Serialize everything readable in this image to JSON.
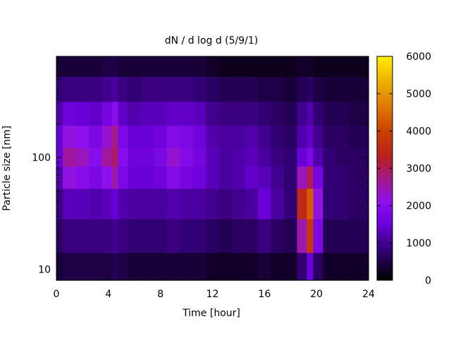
{
  "chart_data": {
    "type": "heatmap",
    "title": "dN / d log d (5/9/1)",
    "xlabel": "Time [hour]",
    "ylabel": "Particle size [nm]",
    "xlim": [
      0,
      24
    ],
    "ylim": [
      8,
      800
    ],
    "yscale": "log",
    "xticks": [
      0,
      4,
      8,
      12,
      16,
      20,
      24
    ],
    "xtick_labels": [
      "0",
      "4",
      "8",
      "12",
      "16",
      "20",
      "24"
    ],
    "yticks": [
      10,
      100
    ],
    "ytick_labels": [
      "10",
      "100"
    ],
    "colorbar": {
      "min": 0,
      "max": 6000,
      "ticks": [
        0,
        1000,
        2000,
        3000,
        4000,
        5000,
        6000
      ],
      "tick_labels": [
        "0",
        "1000",
        "2000",
        "3000",
        "4000",
        "5000",
        "6000"
      ],
      "colormap": "gnuplot pm3d (black-blue-purple-red-orange-yellow)"
    },
    "x": [
      0,
      1,
      2,
      3,
      4,
      4.5,
      5,
      6,
      7,
      8,
      9,
      10,
      11,
      12,
      13,
      14,
      15,
      16,
      17,
      18,
      19,
      19.5,
      20,
      21,
      22,
      23,
      24
    ],
    "y": [
      10,
      20,
      40,
      70,
      100,
      150,
      250,
      400,
      700
    ],
    "z_estimated": [
      [
        400,
        700,
        900,
        1200,
        1500,
        1500,
        1200,
        800,
        400
      ],
      [
        500,
        900,
        1300,
        2200,
        2600,
        2200,
        1600,
        900,
        400
      ],
      [
        500,
        900,
        1300,
        2000,
        2400,
        2100,
        1500,
        900,
        400
      ],
      [
        500,
        900,
        1200,
        1800,
        2000,
        1800,
        1400,
        900,
        400
      ],
      [
        500,
        900,
        1300,
        2100,
        2600,
        2300,
        1700,
        1000,
        500
      ],
      [
        600,
        1000,
        1500,
        2500,
        2900,
        2700,
        2000,
        1100,
        500
      ],
      [
        500,
        900,
        1200,
        1800,
        2000,
        1800,
        1400,
        900,
        400
      ],
      [
        400,
        800,
        1100,
        1500,
        1600,
        1500,
        1200,
        800,
        400
      ],
      [
        400,
        800,
        1100,
        1500,
        1600,
        1500,
        1300,
        900,
        400
      ],
      [
        400,
        800,
        1100,
        1600,
        1800,
        1600,
        1300,
        900,
        400
      ],
      [
        400,
        900,
        1200,
        1900,
        2300,
        1900,
        1400,
        900,
        400
      ],
      [
        400,
        800,
        1100,
        1700,
        1900,
        1800,
        1400,
        900,
        400
      ],
      [
        400,
        800,
        1100,
        1600,
        1700,
        1600,
        1300,
        800,
        400
      ],
      [
        300,
        700,
        1000,
        1300,
        1300,
        1200,
        1000,
        700,
        300
      ],
      [
        300,
        600,
        900,
        1100,
        1100,
        1100,
        900,
        600,
        200
      ],
      [
        300,
        700,
        1000,
        1200,
        1200,
        1100,
        900,
        600,
        200
      ],
      [
        300,
        700,
        1100,
        1400,
        1300,
        1200,
        900,
        600,
        200
      ],
      [
        400,
        900,
        1500,
        1300,
        1100,
        1000,
        800,
        500,
        200
      ],
      [
        300,
        700,
        1100,
        1000,
        900,
        800,
        700,
        500,
        200
      ],
      [
        300,
        600,
        800,
        800,
        800,
        700,
        600,
        400,
        200
      ],
      [
        800,
        2500,
        3500,
        2400,
        1500,
        1200,
        1000,
        600,
        300
      ],
      [
        1500,
        3800,
        4300,
        3000,
        1800,
        1400,
        1200,
        700,
        300
      ],
      [
        700,
        1800,
        2200,
        1700,
        1200,
        1000,
        800,
        500,
        200
      ],
      [
        300,
        600,
        800,
        800,
        800,
        700,
        600,
        400,
        200
      ],
      [
        300,
        600,
        800,
        800,
        700,
        700,
        600,
        400,
        200
      ],
      [
        300,
        600,
        700,
        700,
        700,
        600,
        500,
        400,
        200
      ],
      [
        300,
        600,
        700,
        700,
        700,
        600,
        500,
        400,
        200
      ]
    ]
  }
}
